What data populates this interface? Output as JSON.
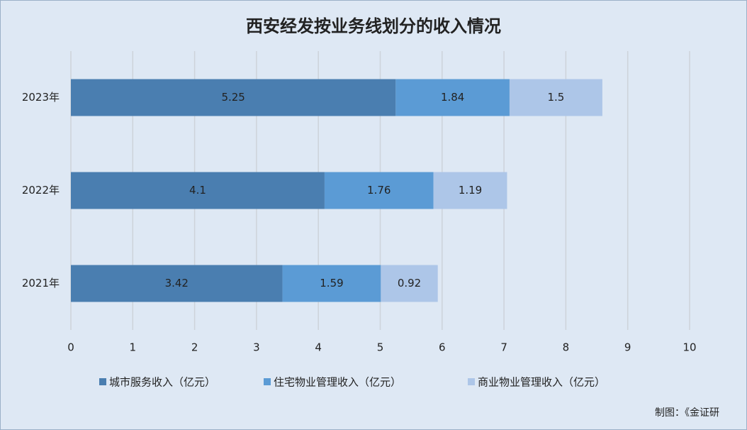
{
  "chart_data": {
    "type": "stacked_barh",
    "title": "西安经发按业务线划分的收入情况",
    "categories": [
      "2023年",
      "2022年",
      "2021年"
    ],
    "series": [
      {
        "name": "城市服务收入（亿元）",
        "color": "#4a7eb0",
        "values": [
          5.25,
          4.1,
          3.42
        ]
      },
      {
        "name": "住宅物业管理收入（亿元）",
        "color": "#5b9bd5",
        "values": [
          1.84,
          1.76,
          1.59
        ]
      },
      {
        "name": "商业物业管理收入（亿元）",
        "color": "#adc6e8",
        "values": [
          1.5,
          1.19,
          0.92
        ]
      }
    ],
    "xlim": [
      0,
      10
    ],
    "xticks": [
      0,
      1,
      2,
      3,
      4,
      5,
      6,
      7,
      8,
      9,
      10
    ],
    "grid": true,
    "legend": "bottom",
    "source": "制图：《金证研"
  }
}
